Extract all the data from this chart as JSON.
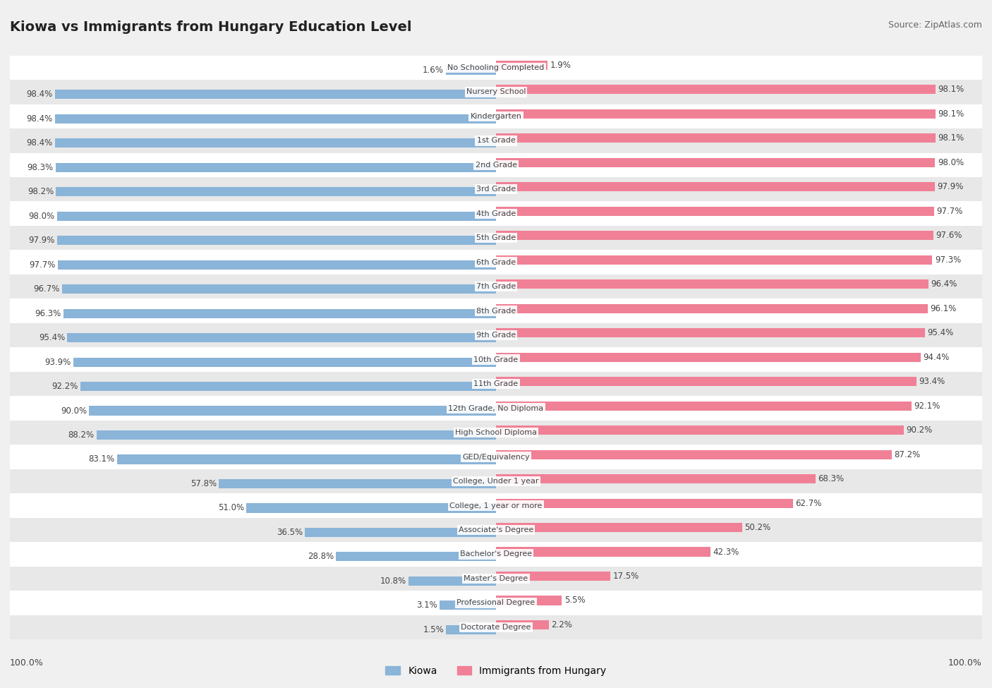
{
  "title": "Kiowa vs Immigrants from Hungary Education Level",
  "source": "Source: ZipAtlas.com",
  "categories": [
    "No Schooling Completed",
    "Nursery School",
    "Kindergarten",
    "1st Grade",
    "2nd Grade",
    "3rd Grade",
    "4th Grade",
    "5th Grade",
    "6th Grade",
    "7th Grade",
    "8th Grade",
    "9th Grade",
    "10th Grade",
    "11th Grade",
    "12th Grade, No Diploma",
    "High School Diploma",
    "GED/Equivalency",
    "College, Under 1 year",
    "College, 1 year or more",
    "Associate's Degree",
    "Bachelor's Degree",
    "Master's Degree",
    "Professional Degree",
    "Doctorate Degree"
  ],
  "kiowa": [
    1.6,
    98.4,
    98.4,
    98.4,
    98.3,
    98.2,
    98.0,
    97.9,
    97.7,
    96.7,
    96.3,
    95.4,
    93.9,
    92.2,
    90.0,
    88.2,
    83.1,
    57.8,
    51.0,
    36.5,
    28.8,
    10.8,
    3.1,
    1.5
  ],
  "hungary": [
    1.9,
    98.1,
    98.1,
    98.1,
    98.0,
    97.9,
    97.7,
    97.6,
    97.3,
    96.4,
    96.1,
    95.4,
    94.4,
    93.4,
    92.1,
    90.2,
    87.2,
    68.3,
    62.7,
    50.2,
    42.3,
    17.5,
    5.5,
    2.2
  ],
  "kiowa_color": "#8ab4d8",
  "hungary_color": "#f08096",
  "background_color": "#f0f0f0",
  "row_color_even": "#ffffff",
  "row_color_odd": "#e8e8e8",
  "center_label_bg": "#ffffff",
  "text_color": "#444444",
  "val_fontsize": 8.5,
  "cat_fontsize": 8.0,
  "title_fontsize": 14,
  "source_fontsize": 9,
  "legend_fontsize": 10
}
